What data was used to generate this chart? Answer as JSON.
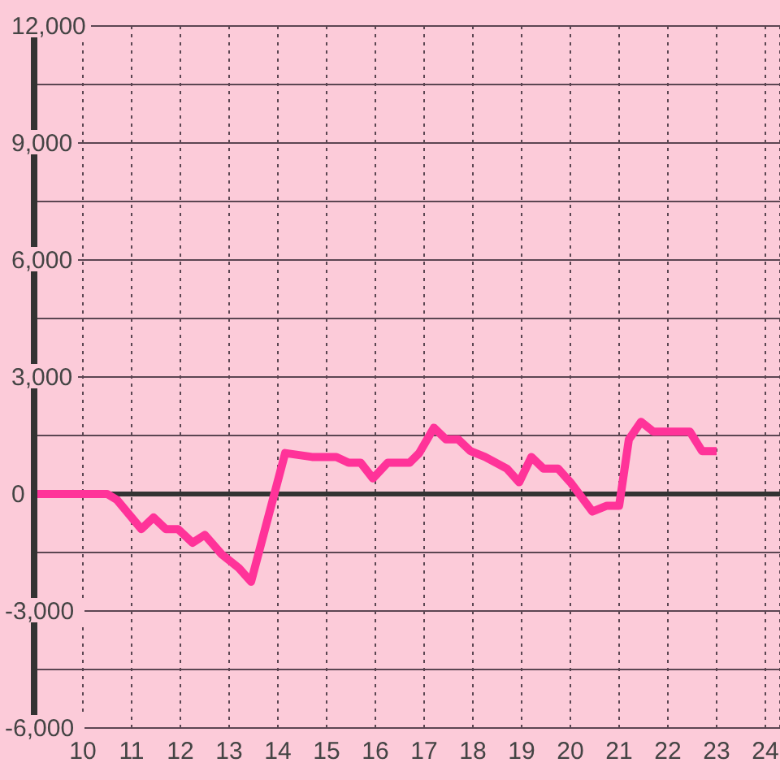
{
  "chart_data": {
    "type": "line",
    "x": [
      9,
      10.5,
      10.7,
      11.2,
      11.45,
      11.7,
      11.95,
      12.25,
      12.5,
      12.85,
      13.2,
      13.45,
      14.15,
      14.7,
      15.2,
      15.45,
      15.7,
      15.95,
      16.25,
      16.7,
      16.9,
      17.2,
      17.45,
      17.7,
      17.95,
      18.25,
      18.7,
      18.95,
      19.2,
      19.45,
      19.75,
      20,
      20.45,
      20.75,
      21,
      21.2,
      21.45,
      21.7,
      22.45,
      22.7,
      23
    ],
    "series": [
      {
        "color": "#ff3399",
        "values": [
          0,
          0,
          -150,
          -900,
          -600,
          -900,
          -900,
          -1250,
          -1050,
          -1550,
          -1900,
          -2250,
          1050,
          950,
          950,
          800,
          800,
          400,
          800,
          800,
          1050,
          1700,
          1400,
          1400,
          1100,
          950,
          650,
          300,
          950,
          650,
          650,
          300,
          -450,
          -300,
          -300,
          1400,
          1850,
          1600,
          1600,
          1100,
          1100
        ]
      }
    ],
    "xlim": [
      9,
      24.3
    ],
    "xticks": [
      10,
      11,
      12,
      13,
      14,
      15,
      16,
      17,
      18,
      19,
      20,
      21,
      22,
      23,
      24
    ],
    "ylim": [
      -6000,
      12000
    ],
    "yticks": [
      {
        "value": -6000,
        "label": "-6,000"
      },
      {
        "value": -4500,
        "label": null
      },
      {
        "value": -3000,
        "label": "-3,000"
      },
      {
        "value": -1500,
        "label": null
      },
      {
        "value": 0,
        "label": "0"
      },
      {
        "value": 1500,
        "label": null
      },
      {
        "value": 3000,
        "label": "3,000"
      },
      {
        "value": 4500,
        "label": null
      },
      {
        "value": 6000,
        "label": "6,000"
      },
      {
        "value": 7500,
        "label": null
      },
      {
        "value": 9000,
        "label": "9,000"
      },
      {
        "value": 10500,
        "label": null
      },
      {
        "value": 12000,
        "label": "12,000"
      }
    ],
    "grid": true,
    "ref_lines": [
      {
        "axis": "y",
        "value": 0,
        "color": "#333333"
      }
    ],
    "marker": "none",
    "line_style": "solid"
  }
}
